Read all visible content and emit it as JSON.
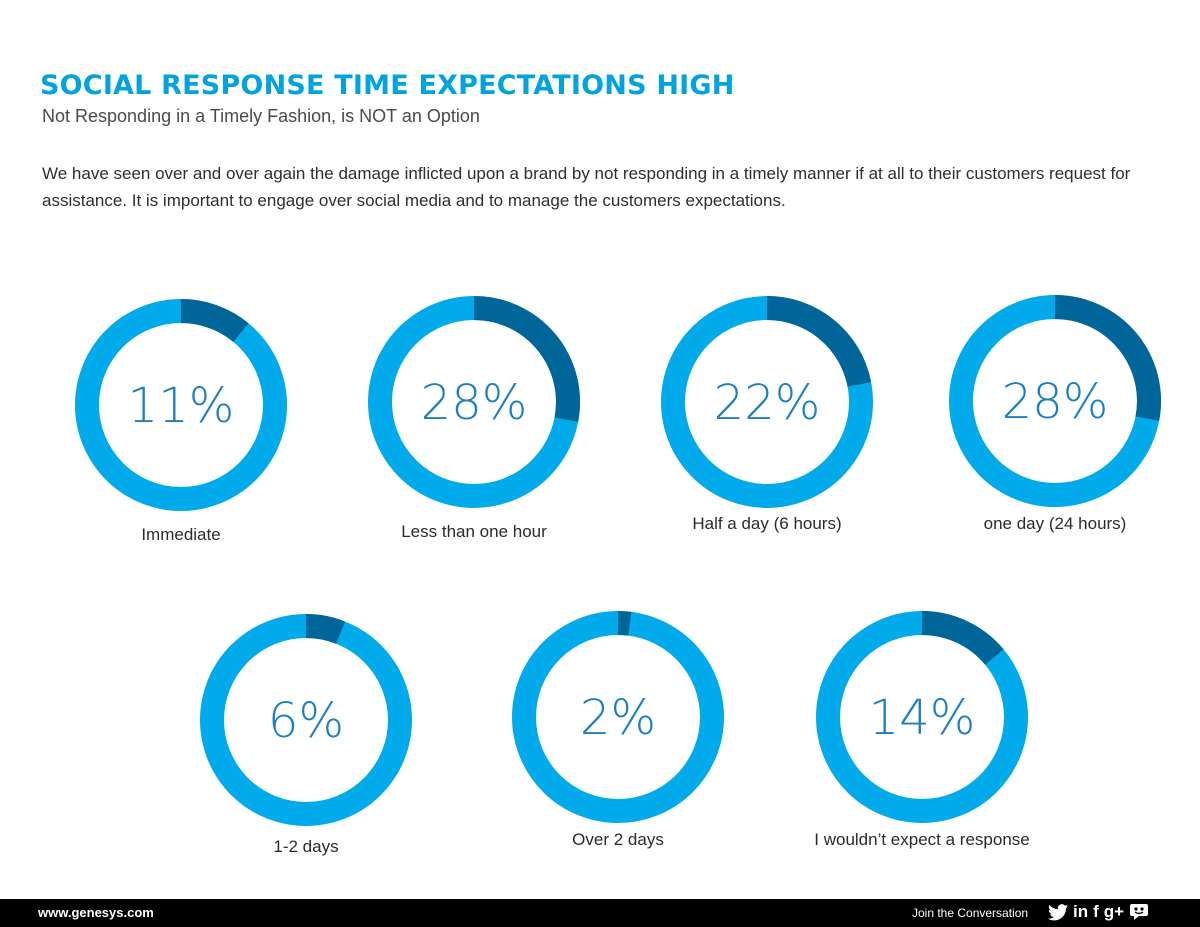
{
  "header": {
    "title": "SOCIAL RESPONSE TIME EXPECTATIONS HIGH",
    "subtitle": "Not Responding in a Timely Fashion, is NOT an Option",
    "intro": "We have seen over and over again the damage inflicted upon a brand by not responding in a timely manner if at all to their customers request for assistance. It is important to engage over social media and to manage the customers expectations."
  },
  "chart_data": {
    "type": "pie",
    "categories": [
      "Immediate",
      "Less than one hour",
      "Half a day (6 hours)",
      "one day (24 hours)",
      "1-2 days",
      "Over 2 days",
      "I wouldn’t expect a response"
    ],
    "values": [
      11,
      28,
      22,
      28,
      6,
      2,
      14
    ],
    "value_labels": [
      "11%",
      "28%",
      "22%",
      "28%",
      "6%",
      "2%",
      "14%"
    ],
    "unit": "%",
    "colors": {
      "highlight": "#006699",
      "ring": "#00aaeb",
      "value_text": "#1c7fc0"
    }
  },
  "footer": {
    "website": "www.genesys.com",
    "join_text": "Join the Conversation",
    "social_icons": [
      "twitter-icon",
      "linkedin-icon",
      "facebook-icon",
      "google-plus-icon",
      "blog-icon"
    ],
    "linkedin_glyph": "in",
    "facebook_glyph": "f",
    "googleplus_glyph": "g+"
  }
}
